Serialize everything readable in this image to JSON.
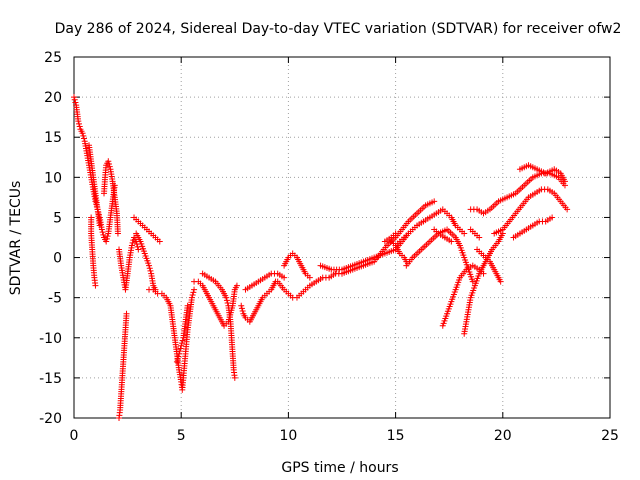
{
  "chart_data": {
    "type": "scatter",
    "title": "Day 286 of 2024, Sidereal Day-to-day VTEC variation (SDTVAR) for receiver ofw2",
    "xlabel": "GPS time / hours",
    "ylabel": "SDTVAR / TECUs",
    "xlim": [
      0,
      25
    ],
    "ylim": [
      -20,
      25
    ],
    "x_ticks": [
      0,
      5,
      10,
      15,
      20,
      25
    ],
    "y_ticks": [
      -20,
      -15,
      -10,
      -5,
      0,
      5,
      10,
      15,
      20,
      25
    ],
    "x_tick_labels": [
      "0",
      "5",
      "10",
      "15",
      "20",
      "25"
    ],
    "y_tick_labels": [
      "-20",
      "-15",
      "-10",
      "-5",
      "0",
      "5",
      "10",
      "15",
      "20",
      "25"
    ],
    "grid": true,
    "marker": "+",
    "color": "#ff0000",
    "series": [
      {
        "name": "s1",
        "points": [
          [
            0,
            20
          ],
          [
            0.1,
            19
          ],
          [
            0.2,
            17
          ],
          [
            0.3,
            16
          ],
          [
            0.4,
            15.5
          ],
          [
            0.5,
            14.5
          ],
          [
            0.6,
            13
          ],
          [
            0.7,
            11.5
          ],
          [
            0.8,
            10
          ],
          [
            0.9,
            8.5
          ],
          [
            1,
            7
          ],
          [
            1.1,
            6
          ],
          [
            1.2,
            5
          ],
          [
            1.3,
            3.5
          ],
          [
            1.4,
            2.5
          ],
          [
            1.5,
            2
          ],
          [
            1.6,
            3
          ],
          [
            1.7,
            5
          ],
          [
            1.8,
            7
          ],
          [
            1.9,
            9
          ]
        ]
      },
      {
        "name": "s2",
        "points": [
          [
            0.7,
            14
          ],
          [
            0.8,
            12
          ],
          [
            0.9,
            10
          ],
          [
            1,
            8
          ],
          [
            1.1,
            6
          ],
          [
            1.2,
            4
          ]
        ]
      },
      {
        "name": "s3",
        "points": [
          [
            0.8,
            5
          ],
          [
            0.8,
            3
          ],
          [
            0.85,
            1
          ],
          [
            0.9,
            -1
          ],
          [
            0.95,
            -2.5
          ],
          [
            1,
            -3.5
          ]
        ]
      },
      {
        "name": "s4",
        "points": [
          [
            1.4,
            8
          ],
          [
            1.45,
            10
          ],
          [
            1.5,
            11.5
          ],
          [
            1.6,
            12
          ],
          [
            1.7,
            11
          ],
          [
            1.8,
            9.5
          ],
          [
            1.9,
            7.5
          ],
          [
            2,
            5.5
          ],
          [
            2.05,
            3
          ]
        ]
      },
      {
        "name": "s5",
        "points": [
          [
            2.1,
            1
          ],
          [
            2.2,
            -1
          ],
          [
            2.3,
            -2.5
          ],
          [
            2.4,
            -4
          ],
          [
            2.5,
            -2
          ],
          [
            2.6,
            0
          ],
          [
            2.7,
            1.5
          ],
          [
            2.8,
            2.5
          ],
          [
            2.9,
            2
          ],
          [
            3,
            1
          ]
        ]
      },
      {
        "name": "s6",
        "points": [
          [
            2.1,
            -20
          ],
          [
            2.15,
            -19
          ],
          [
            2.2,
            -17
          ],
          [
            2.25,
            -15
          ],
          [
            2.3,
            -13
          ],
          [
            2.35,
            -11
          ],
          [
            2.4,
            -9
          ],
          [
            2.45,
            -7
          ]
        ]
      },
      {
        "name": "s7",
        "points": [
          [
            2.8,
            5
          ],
          [
            3,
            4.5
          ],
          [
            3.2,
            4
          ],
          [
            3.4,
            3.5
          ],
          [
            3.6,
            3
          ],
          [
            3.8,
            2.5
          ],
          [
            4,
            2
          ]
        ]
      },
      {
        "name": "s8",
        "points": [
          [
            2.9,
            3
          ],
          [
            3.1,
            2
          ],
          [
            3.3,
            0.5
          ],
          [
            3.5,
            -1
          ],
          [
            3.6,
            -2
          ],
          [
            3.7,
            -3.5
          ],
          [
            3.8,
            -4
          ]
        ]
      },
      {
        "name": "s9",
        "points": [
          [
            3.5,
            -4
          ],
          [
            3.7,
            -4
          ],
          [
            3.9,
            -4.5
          ],
          [
            4.1,
            -4.5
          ],
          [
            4.3,
            -5
          ],
          [
            4.5,
            -6
          ],
          [
            4.6,
            -8
          ],
          [
            4.7,
            -10
          ],
          [
            4.8,
            -12
          ],
          [
            4.9,
            -14
          ],
          [
            5,
            -15.5
          ],
          [
            5.05,
            -16.5
          ],
          [
            5.1,
            -15
          ],
          [
            5.2,
            -12
          ],
          [
            5.3,
            -9
          ],
          [
            5.4,
            -7
          ],
          [
            5.5,
            -5
          ],
          [
            5.6,
            -4
          ]
        ]
      },
      {
        "name": "s10",
        "points": [
          [
            4.8,
            -13
          ],
          [
            4.9,
            -12
          ],
          [
            5,
            -11
          ],
          [
            5.1,
            -10
          ],
          [
            5.2,
            -8
          ],
          [
            5.3,
            -6
          ]
        ]
      },
      {
        "name": "s11",
        "points": [
          [
            5.6,
            -3
          ],
          [
            5.8,
            -3
          ],
          [
            6,
            -3.5
          ],
          [
            6.2,
            -4.5
          ],
          [
            6.4,
            -5.5
          ],
          [
            6.6,
            -6.5
          ],
          [
            6.8,
            -7.5
          ],
          [
            7,
            -8.5
          ],
          [
            7.2,
            -8
          ],
          [
            7.4,
            -6
          ],
          [
            7.5,
            -4
          ],
          [
            7.6,
            -3.5
          ]
        ]
      },
      {
        "name": "s12",
        "points": [
          [
            6,
            -2
          ],
          [
            6.3,
            -2.5
          ],
          [
            6.6,
            -3
          ],
          [
            6.9,
            -4
          ],
          [
            7.1,
            -5
          ],
          [
            7.2,
            -6
          ],
          [
            7.3,
            -8
          ],
          [
            7.35,
            -10
          ],
          [
            7.4,
            -12
          ],
          [
            7.45,
            -14
          ],
          [
            7.5,
            -15
          ]
        ]
      },
      {
        "name": "s13",
        "points": [
          [
            7.8,
            -6
          ],
          [
            7.9,
            -7
          ],
          [
            8,
            -7.5
          ],
          [
            8.2,
            -8
          ],
          [
            8.4,
            -7
          ],
          [
            8.6,
            -6
          ],
          [
            8.8,
            -5
          ],
          [
            9,
            -4.5
          ],
          [
            9.2,
            -4
          ],
          [
            9.4,
            -3
          ]
        ]
      },
      {
        "name": "s14",
        "points": [
          [
            8,
            -4
          ],
          [
            8.3,
            -3.5
          ],
          [
            8.6,
            -3
          ],
          [
            8.9,
            -2.5
          ],
          [
            9.2,
            -2
          ],
          [
            9.5,
            -2
          ],
          [
            9.8,
            -2.5
          ]
        ]
      },
      {
        "name": "s15",
        "points": [
          [
            9.5,
            -3
          ],
          [
            9.8,
            -4
          ],
          [
            10,
            -4.5
          ],
          [
            10.2,
            -5
          ],
          [
            10.4,
            -5
          ],
          [
            10.6,
            -4.5
          ],
          [
            10.8,
            -4
          ],
          [
            11,
            -3.5
          ],
          [
            11.3,
            -3
          ],
          [
            11.6,
            -2.5
          ],
          [
            11.9,
            -2.5
          ],
          [
            12.2,
            -2
          ],
          [
            12.5,
            -2
          ]
        ]
      },
      {
        "name": "s16",
        "points": [
          [
            9.8,
            -1
          ],
          [
            10,
            0
          ],
          [
            10.2,
            0.5
          ],
          [
            10.4,
            0
          ],
          [
            10.6,
            -1
          ],
          [
            10.8,
            -2
          ],
          [
            11,
            -2.5
          ]
        ]
      },
      {
        "name": "s17",
        "points": [
          [
            11.5,
            -1
          ],
          [
            12,
            -1.5
          ],
          [
            12.5,
            -1.5
          ],
          [
            13,
            -1
          ],
          [
            13.5,
            -0.5
          ],
          [
            14,
            0
          ],
          [
            14.5,
            0.5
          ],
          [
            15,
            1
          ],
          [
            15.3,
            2
          ],
          [
            15.6,
            3
          ]
        ]
      },
      {
        "name": "s18",
        "points": [
          [
            12.5,
            -2
          ],
          [
            13,
            -1.5
          ],
          [
            13.5,
            -1
          ],
          [
            14,
            -0.5
          ],
          [
            14.3,
            0.5
          ],
          [
            14.6,
            1.5
          ],
          [
            15,
            2.5
          ],
          [
            15.3,
            3.5
          ],
          [
            15.6,
            4.5
          ],
          [
            16,
            5.5
          ],
          [
            16.4,
            6.5
          ],
          [
            16.8,
            7
          ]
        ]
      },
      {
        "name": "s19",
        "points": [
          [
            14.5,
            2
          ],
          [
            14.8,
            2.5
          ],
          [
            15,
            3
          ]
        ]
      },
      {
        "name": "s20",
        "points": [
          [
            15,
            1.5
          ],
          [
            15.2,
            2
          ],
          [
            15.4,
            2.5
          ],
          [
            15.6,
            3
          ],
          [
            15.8,
            3.5
          ],
          [
            16,
            4
          ],
          [
            16.3,
            4.5
          ],
          [
            16.6,
            5
          ],
          [
            16.9,
            5.5
          ],
          [
            17.2,
            6
          ],
          [
            17.4,
            5.5
          ],
          [
            17.6,
            5
          ],
          [
            17.8,
            4
          ],
          [
            18,
            3.5
          ],
          [
            18.2,
            3
          ]
        ]
      },
      {
        "name": "s21",
        "points": [
          [
            14.8,
            2
          ],
          [
            15,
            1.5
          ],
          [
            15.2,
            0.5
          ],
          [
            15.4,
            0
          ],
          [
            15.5,
            -0.5
          ]
        ]
      },
      {
        "name": "s22",
        "points": [
          [
            15.5,
            -1
          ],
          [
            15.8,
            0
          ],
          [
            16.2,
            1
          ],
          [
            16.6,
            2
          ],
          [
            17,
            3
          ],
          [
            17.4,
            3.5
          ],
          [
            17.8,
            2.5
          ],
          [
            18,
            1.5
          ],
          [
            18.2,
            0
          ],
          [
            18.4,
            -1.5
          ],
          [
            18.6,
            -3
          ]
        ]
      },
      {
        "name": "s23",
        "points": [
          [
            16.8,
            3.5
          ],
          [
            17,
            3
          ],
          [
            17.3,
            2.5
          ],
          [
            17.6,
            2
          ]
        ]
      },
      {
        "name": "s24",
        "points": [
          [
            17.2,
            -8.5
          ],
          [
            17.4,
            -7
          ],
          [
            17.6,
            -5.5
          ],
          [
            17.8,
            -4
          ],
          [
            18,
            -2.5
          ],
          [
            18.3,
            -1.5
          ],
          [
            18.6,
            -1
          ],
          [
            18.9,
            -1.5
          ],
          [
            19.1,
            -2
          ]
        ]
      },
      {
        "name": "s25",
        "points": [
          [
            18.2,
            -9.5
          ],
          [
            18.3,
            -8
          ],
          [
            18.4,
            -6.5
          ],
          [
            18.5,
            -5
          ],
          [
            18.7,
            -3.5
          ],
          [
            18.9,
            -2
          ],
          [
            19.1,
            -1
          ],
          [
            19.3,
            0
          ],
          [
            19.5,
            1
          ],
          [
            19.8,
            2
          ],
          [
            20,
            3
          ]
        ]
      },
      {
        "name": "s26",
        "points": [
          [
            18.8,
            1
          ],
          [
            19,
            0.5
          ],
          [
            19.2,
            0
          ],
          [
            19.4,
            -0.5
          ],
          [
            19.6,
            -1.5
          ],
          [
            19.8,
            -2.5
          ],
          [
            19.9,
            -3
          ]
        ]
      },
      {
        "name": "s27",
        "points": [
          [
            18.5,
            3.5
          ],
          [
            18.7,
            3
          ],
          [
            18.9,
            2.5
          ]
        ]
      },
      {
        "name": "s28",
        "points": [
          [
            18.5,
            6
          ],
          [
            18.8,
            6
          ],
          [
            19.1,
            5.5
          ],
          [
            19.4,
            6
          ],
          [
            19.8,
            7
          ],
          [
            20.2,
            7.5
          ],
          [
            20.6,
            8
          ],
          [
            21,
            9
          ],
          [
            21.4,
            10
          ],
          [
            21.8,
            10.5
          ],
          [
            22.2,
            10.5
          ],
          [
            22.6,
            10
          ],
          [
            22.9,
            9
          ]
        ]
      },
      {
        "name": "s29",
        "points": [
          [
            20.8,
            11
          ],
          [
            21.2,
            11.5
          ],
          [
            21.6,
            11
          ],
          [
            22,
            10.5
          ],
          [
            22.4,
            11
          ],
          [
            22.7,
            10.5
          ],
          [
            22.9,
            9.5
          ]
        ]
      },
      {
        "name": "s30",
        "points": [
          [
            19.6,
            3
          ],
          [
            20,
            3.5
          ],
          [
            20.3,
            4.5
          ],
          [
            20.6,
            5.5
          ],
          [
            20.9,
            6.5
          ],
          [
            21.2,
            7.5
          ],
          [
            21.5,
            8
          ],
          [
            21.8,
            8.5
          ],
          [
            22.1,
            8.5
          ],
          [
            22.4,
            8
          ],
          [
            22.7,
            7
          ],
          [
            23,
            6
          ]
        ]
      },
      {
        "name": "s31",
        "points": [
          [
            20.5,
            2.5
          ],
          [
            20.8,
            3
          ],
          [
            21.1,
            3.5
          ],
          [
            21.4,
            4
          ],
          [
            21.7,
            4.5
          ],
          [
            22,
            4.5
          ],
          [
            22.3,
            5
          ]
        ]
      }
    ]
  }
}
